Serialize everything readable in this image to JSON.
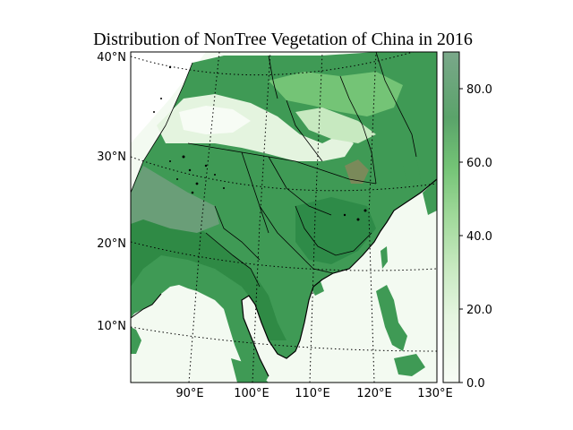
{
  "title": "Distribution of NonTree Vegetation of China in 2016",
  "map": {
    "lat_ticks": [
      "40°N",
      "30°N",
      "20°N",
      "10°N"
    ],
    "lon_ticks": [
      "90°E",
      "100°E",
      "110°E",
      "120°E",
      "130°E"
    ],
    "extent": {
      "lon_min": 80,
      "lon_max": 130,
      "lat_min": 4,
      "lat_max": 41
    },
    "land_base_color": "#3f9a55",
    "ocean_color": "#f3faf1",
    "plateau_light_color": "#e4f4df",
    "boundary_color": "#000000"
  },
  "colorbar": {
    "min": 0,
    "max": 90,
    "ticks": [
      "0.0",
      "20.0",
      "40.0",
      "60.0",
      "80.0"
    ],
    "tick_values": [
      0,
      20,
      40,
      60,
      80
    ],
    "colors": [
      "#f7fcf5",
      "#e5f5e0",
      "#c7e9c0",
      "#a1d99b",
      "#74c476",
      "#41ab5d",
      "#238b45",
      "#006d2c",
      "#00441b"
    ]
  }
}
